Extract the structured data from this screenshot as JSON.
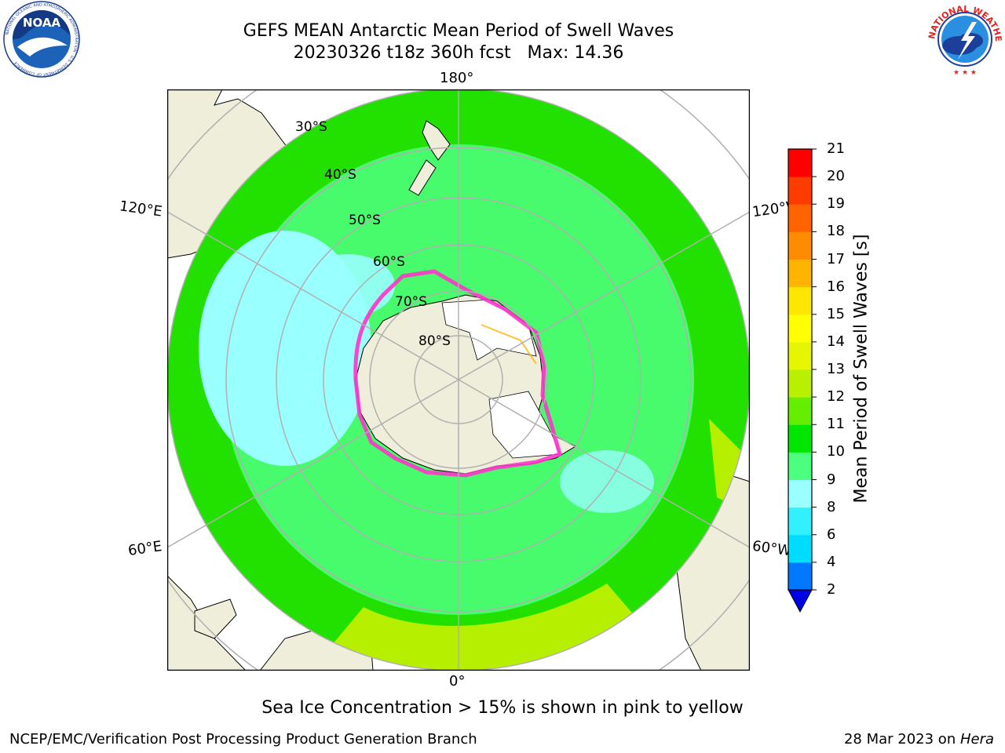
{
  "header": {
    "title_line1": "GEFS MEAN Antarctic Mean Period of Swell Waves",
    "title_line2": "20230326 t18z 360h fcst   Max: 14.36"
  },
  "map": {
    "projection": "south-polar-stereographic",
    "longitude_labels": {
      "top": "180°",
      "bottom": "0°",
      "upper_left": "120°E",
      "upper_right": "120°W",
      "lower_left": "60°E",
      "lower_right": "60°W"
    },
    "latitude_labels": [
      "30°S",
      "40°S",
      "50°S",
      "60°S",
      "70°S",
      "80°S"
    ],
    "colors": {
      "land": "#efeedb",
      "ice_free_open": "#ffffff",
      "ice_edge": "#ff33cc",
      "gridline": "#b0b0b0"
    }
  },
  "colorbar": {
    "label": "Mean Period of Swell Waves [s]",
    "ticks": [
      "2",
      "4",
      "6",
      "8",
      "9",
      "10",
      "11",
      "12",
      "13",
      "14",
      "15",
      "16",
      "17",
      "18",
      "19",
      "20",
      "21"
    ],
    "colors": [
      "#0078ff",
      "#00dcff",
      "#33f0ff",
      "#99ffff",
      "#4dff7f",
      "#00e600",
      "#66ee00",
      "#b8f000",
      "#e6f500",
      "#ffff00",
      "#ffe600",
      "#ffb400",
      "#ff8c00",
      "#ff6400",
      "#ff3c00",
      "#ff0000"
    ],
    "under_color": "#0000e6"
  },
  "annotation": "Sea Ice Concentration > 15% is shown in pink to yellow",
  "footer": {
    "left": "NCEP/EMC/Verification Post Processing Product Generation Branch",
    "right_prefix": "28 Mar 2023 on ",
    "right_host": "Hera"
  },
  "logos": {
    "left": {
      "name": "NOAA",
      "ring_text": "NATIONAL OCEANIC AND ATMOSPHERIC ADMINISTRATION · U.S. DEPARTMENT OF COMMERCE"
    },
    "right": {
      "ring_text": "NATIONAL WEATHER SERVICE"
    }
  }
}
